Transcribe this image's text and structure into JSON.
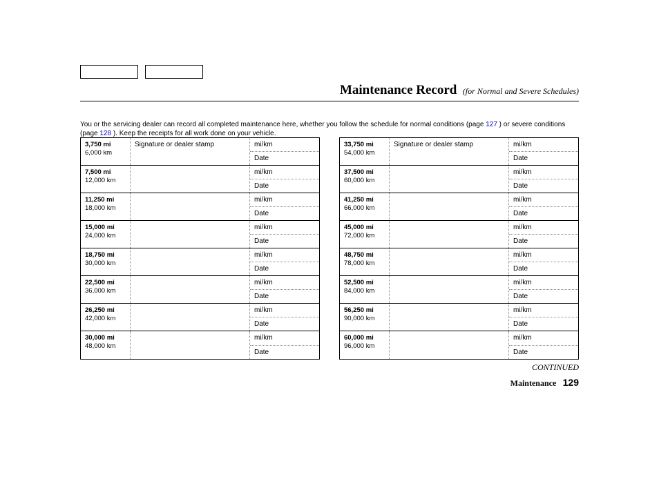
{
  "header": {
    "title": "Maintenance Record",
    "subtitle": "(for Normal and Severe Schedules)"
  },
  "intro": {
    "part1": "You or the servicing dealer can record all completed maintenance here, whether you follow the schedule for normal conditions (page ",
    "link1": "127",
    "part2": " ) or severe conditions (page ",
    "link2": "128",
    "part3": " ). Keep the receipts for all work done on your vehicle."
  },
  "labels": {
    "signature": "Signature or dealer stamp",
    "mikm": "mi/km",
    "date": "Date"
  },
  "left": [
    {
      "mi": "3,750 mi",
      "km": "6,000 km"
    },
    {
      "mi": "7,500 mi",
      "km": "12,000 km"
    },
    {
      "mi": "11,250 mi",
      "km": "18,000 km"
    },
    {
      "mi": "15,000 mi",
      "km": "24,000 km"
    },
    {
      "mi": "18,750 mi",
      "km": "30,000 km"
    },
    {
      "mi": "22,500 mi",
      "km": "36,000 km"
    },
    {
      "mi": "26,250 mi",
      "km": "42,000 km"
    },
    {
      "mi": "30,000 mi",
      "km": "48,000 km"
    }
  ],
  "right": [
    {
      "mi": "33,750 mi",
      "km": "54,000 km"
    },
    {
      "mi": "37,500 mi",
      "km": "60,000 km"
    },
    {
      "mi": "41,250 mi",
      "km": "66,000 km"
    },
    {
      "mi": "45,000 mi",
      "km": "72,000 km"
    },
    {
      "mi": "48,750 mi",
      "km": "78,000 km"
    },
    {
      "mi": "52,500 mi",
      "km": "84,000 km"
    },
    {
      "mi": "56,250 mi",
      "km": "90,000 km"
    },
    {
      "mi": "60,000 mi",
      "km": "96,000 km"
    }
  ],
  "footer": {
    "continued": "CONTINUED",
    "section": "Maintenance",
    "page": "129"
  }
}
